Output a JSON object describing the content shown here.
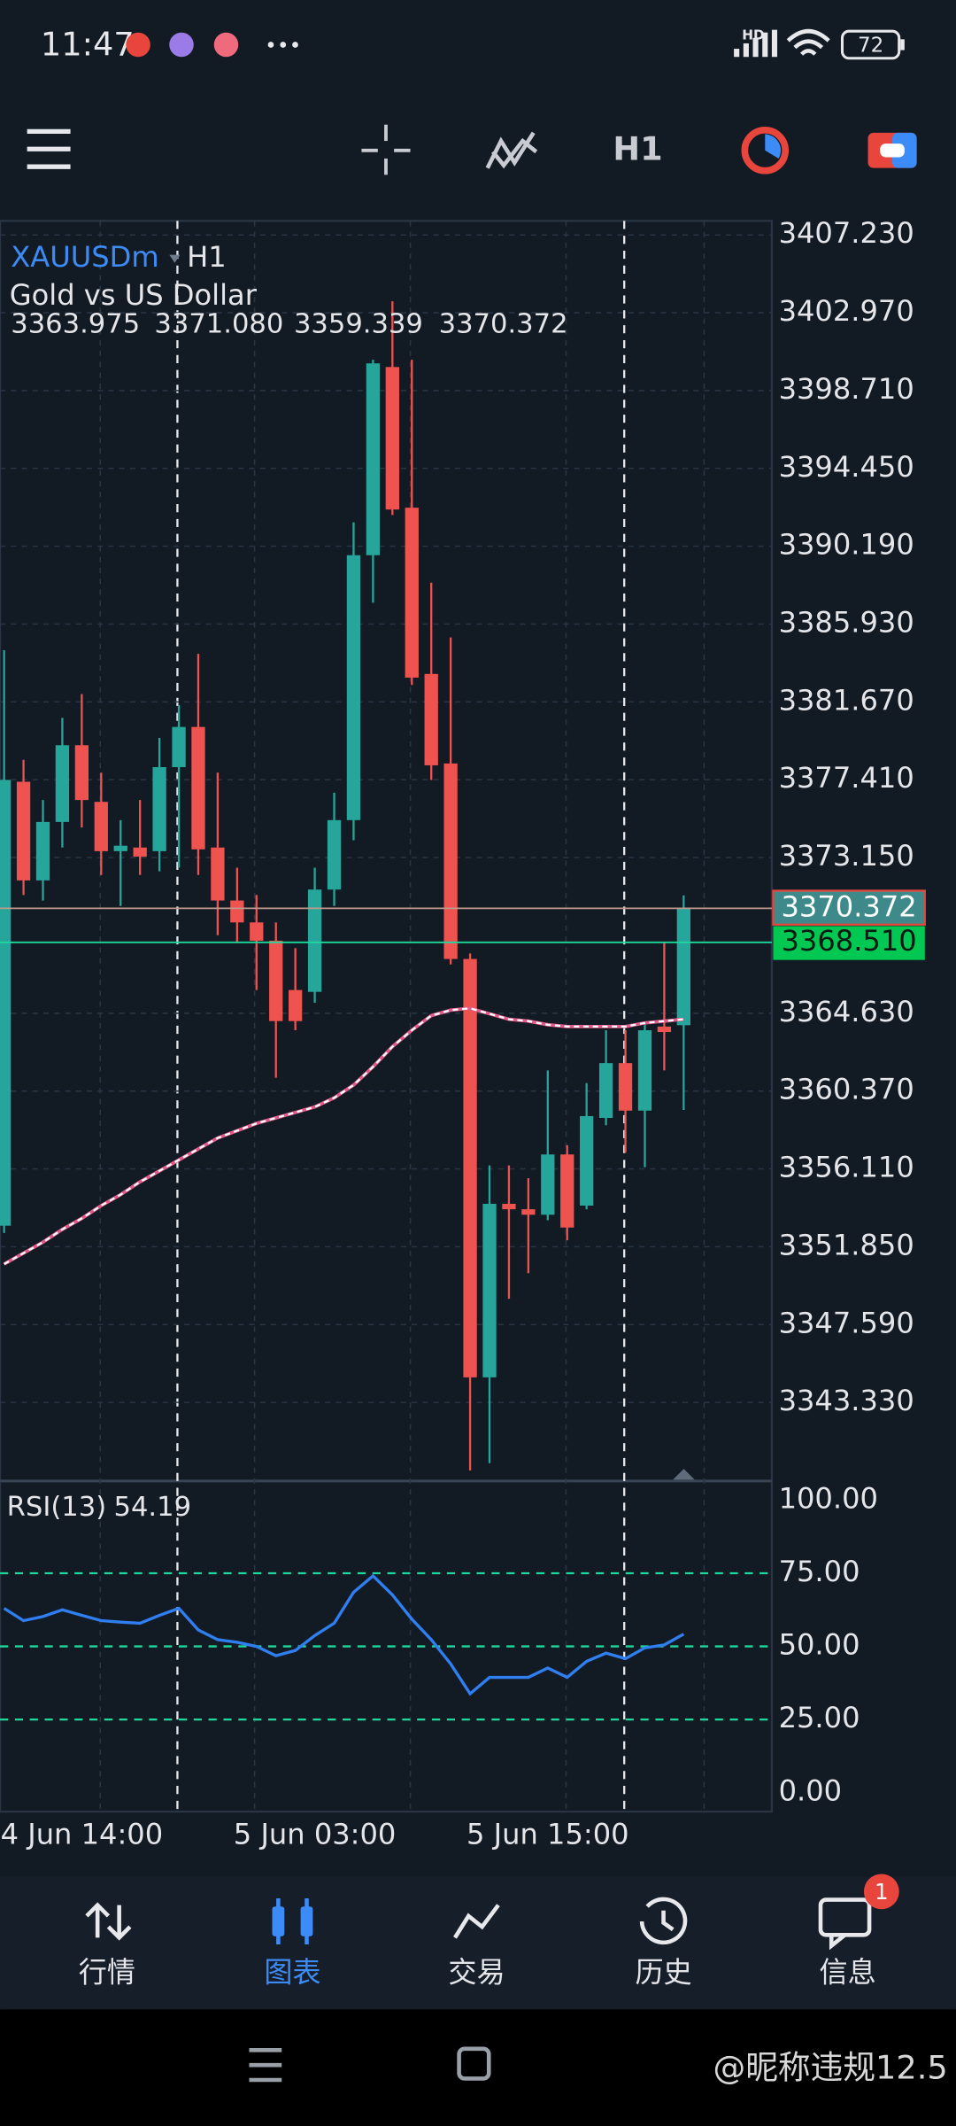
{
  "status_bar": {
    "time": "11:47",
    "network": "HD",
    "battery": "72"
  },
  "chart_data": {
    "type": "candlestick",
    "symbol": "XAUUSDm",
    "timeframe": "H1",
    "description": "Gold vs US Dollar",
    "ohlc": [
      3363.975,
      {
        "value": 3371.08,
        "label": "3371.080"
      },
      3359.339,
      3370.372
    ],
    "categories": [
      null,
      null,
      null,
      null,
      "4 Jun 14:00",
      null,
      null,
      null,
      null,
      null,
      null,
      null,
      null,
      null,
      null,
      null,
      "5 Jun 03:00",
      null,
      null,
      null,
      null,
      null,
      null,
      null,
      null,
      null,
      null,
      null,
      "5 Jun 15:00",
      null,
      null,
      null,
      null,
      null,
      null,
      null
    ],
    "open": [
      3353.0,
      3377.3,
      3371.9,
      3375.1,
      3379.3,
      3376.2,
      3373.5,
      3373.7,
      3373.5,
      3378.1,
      3380.3,
      3373.7,
      3370.8,
      3369.6,
      3368.6,
      3365.9,
      3365.8,
      3371.4,
      3375.2,
      3389.7,
      3400.0,
      3392.3,
      3383.2,
      3378.3,
      3367.6,
      3344.7,
      3354.2,
      3353.9,
      3353.6,
      3356.9,
      3354.1,
      3358.9,
      3361.9,
      3359.3,
      3363.9,
      3363.975
    ],
    "high": [
      3384.5,
      3378.5,
      3376.3,
      3380.8,
      3382.1,
      3377.8,
      3375.2,
      3376.3,
      3379.7,
      3381.5,
      3384.3,
      3377.8,
      3372.6,
      3371.1,
      3369.6,
      3368.2,
      3372.6,
      3376.7,
      3391.5,
      3400.4,
      3403.6,
      3400.4,
      3388.2,
      3385.2,
      3367.9,
      3356.3,
      3356.3,
      3355.6,
      3361.5,
      3357.4,
      3360.8,
      3363.7,
      3363.7,
      3364.1,
      3368.5,
      3371.08
    ],
    "low": [
      3352.6,
      3371.1,
      3370.8,
      3373.7,
      3374.8,
      3372.2,
      3370.5,
      3372.2,
      3372.4,
      3372.6,
      3372.2,
      3368.9,
      3368.5,
      3365.9,
      3361.1,
      3363.7,
      3365.2,
      3370.5,
      3374.1,
      3387.1,
      3391.9,
      3382.6,
      3377.4,
      3367.3,
      3339.6,
      3340.0,
      3349.0,
      3350.4,
      3353.3,
      3352.2,
      3353.9,
      3358.5,
      3357.0,
      3356.2,
      3361.5,
      3359.339
    ],
    "close": [
      3377.4,
      3371.9,
      3375.1,
      3379.3,
      3376.3,
      3373.5,
      3373.8,
      3373.2,
      3378.1,
      3380.3,
      3373.6,
      3370.8,
      3369.6,
      3368.6,
      3364.2,
      3364.2,
      3371.4,
      3375.2,
      3389.7,
      3400.2,
      3392.2,
      3383.0,
      3378.2,
      3367.6,
      3344.7,
      3354.2,
      3353.9,
      3353.6,
      3356.9,
      3352.9,
      3359.0,
      3361.9,
      3359.3,
      3363.7,
      3363.6,
      3370.372
    ],
    "up_color": "#26a69a",
    "down_color": "#ef5350",
    "ma": {
      "color": "#ffffff",
      "values": [
        3350.9,
        3351.5,
        3352.1,
        3352.8,
        3353.4,
        3354.1,
        3354.7,
        3355.4,
        3356.0,
        3356.6,
        3357.2,
        3357.8,
        3358.2,
        3358.6,
        3358.9,
        3359.2,
        3359.5,
        3360.0,
        3360.7,
        3361.7,
        3362.8,
        3363.7,
        3364.5,
        3364.8,
        3364.9,
        3364.6,
        3364.3,
        3364.2,
        3364.0,
        3363.9,
        3363.9,
        3363.9,
        3363.9,
        3364.1,
        3364.2,
        3364.3
      ]
    },
    "bid": 3370.372,
    "ask": {
      "value": 3368.51,
      "label": "3368.510"
    },
    "ylim": [
      3339.1,
      3408.0
    ],
    "yticks": [
      {
        "value": 3407.23,
        "label": "3407.230"
      },
      {
        "value": 3402.97,
        "label": "3402.970"
      },
      {
        "value": 3398.71,
        "label": "3398.710"
      },
      {
        "value": 3394.45,
        "label": "3394.450"
      },
      {
        "value": 3390.19,
        "label": "3390.190"
      },
      {
        "value": 3385.93,
        "label": "3385.930"
      },
      {
        "value": 3381.67,
        "label": "3381.670"
      },
      {
        "value": 3377.41,
        "label": "3377.410"
      },
      {
        "value": 3373.15,
        "label": "3373.150"
      },
      {
        "value": 3364.63,
        "label": "3364.630"
      },
      {
        "value": 3360.37,
        "label": "3360.370"
      },
      {
        "value": 3356.11,
        "label": "3356.110"
      },
      {
        "value": 3351.85,
        "label": "3351.850"
      },
      {
        "value": 3347.59,
        "label": "3347.590"
      },
      {
        "value": 3343.33,
        "label": "3343.330"
      }
    ],
    "grid": true,
    "rsi": {
      "name": "RSI(13)",
      "current": 54.19,
      "color": "#2f7ff0",
      "values": [
        63.0,
        58.8,
        60.2,
        62.5,
        60.6,
        58.8,
        58.3,
        57.9,
        60.6,
        63.0,
        55.6,
        52.3,
        51.4,
        50.0,
        46.8,
        48.6,
        53.7,
        57.9,
        68.5,
        74.1,
        67.6,
        59.3,
        52.3,
        44.0,
        33.8,
        39.4,
        39.4,
        39.4,
        42.6,
        39.4,
        44.9,
        47.7,
        45.8,
        49.5,
        50.5,
        54.19
      ],
      "ylim": [
        -6.5,
        105.6
      ],
      "yticks": [
        {
          "value": 100,
          "label": "100.00"
        },
        {
          "value": 75,
          "label": "75.00"
        },
        {
          "value": 50,
          "label": "50.00"
        },
        {
          "value": 25,
          "label": "25.00"
        },
        {
          "value": 0,
          "label": "0.00"
        }
      ],
      "levels": [
        75,
        50,
        25
      ],
      "level_color": "#1ed99b"
    }
  },
  "bottom_nav": {
    "items": [
      "行情",
      "图表",
      "交易",
      "历史",
      "信息"
    ],
    "active": 1,
    "badge": "1"
  },
  "watermark": "@昵称违规12.5"
}
